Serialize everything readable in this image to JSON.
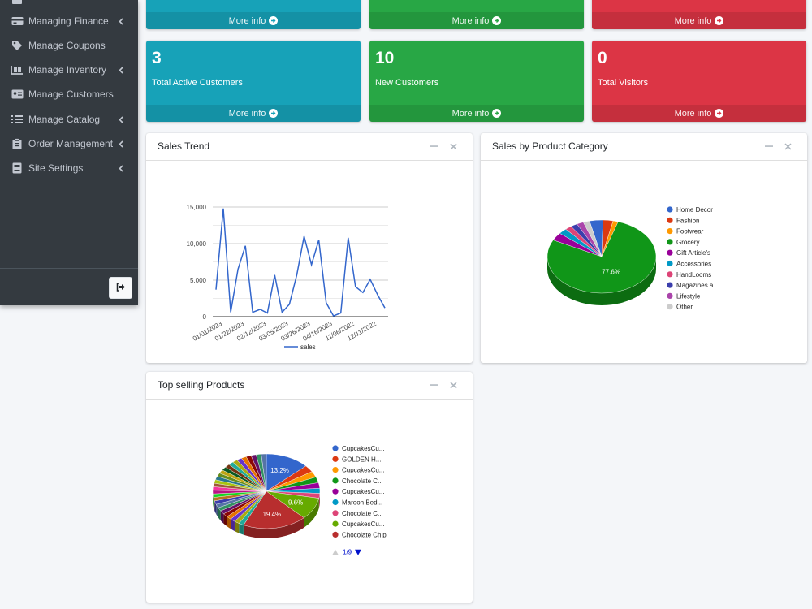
{
  "sidebar": {
    "items": [
      {
        "label": "Managing Finance",
        "icon": "credit-card-icon",
        "chevron": true
      },
      {
        "label": "Manage Coupons",
        "icon": "tag-icon",
        "chevron": false
      },
      {
        "label": "Manage Inventory",
        "icon": "dolly-icon",
        "chevron": true
      },
      {
        "label": "Manage Customers",
        "icon": "id-card-icon",
        "chevron": false
      },
      {
        "label": "Manage Catalog",
        "icon": "list-icon",
        "chevron": true
      },
      {
        "label": "Order Management",
        "icon": "clipboard-icon",
        "chevron": true
      },
      {
        "label": "Site Settings",
        "icon": "server-icon",
        "chevron": true
      }
    ],
    "logout_icon": "sign-out-icon"
  },
  "top_boxes": [
    {
      "footer": "More info",
      "color": "#17a2b8"
    },
    {
      "footer": "More info",
      "color": "#28a745"
    },
    {
      "footer": "More info",
      "color": "#dc3545"
    }
  ],
  "stat_boxes": [
    {
      "value": "3",
      "label": "Total Active Customers",
      "footer": "More info",
      "color": "#17a2b8"
    },
    {
      "value": "10",
      "label": "New Customers",
      "footer": "More info",
      "color": "#28a745"
    },
    {
      "value": "0",
      "label": "Total Visitors",
      "footer": "More info",
      "color": "#dc3545"
    }
  ],
  "cards": {
    "sales_trend": {
      "title": "Sales Trend"
    },
    "sales_by_category": {
      "title": "Sales by Product Category"
    },
    "top_selling": {
      "title": "Top selling Products"
    }
  },
  "chart_data": [
    {
      "type": "line",
      "title": "Sales Trend",
      "xlabel": "",
      "ylabel": "",
      "ylim": [
        0,
        15000
      ],
      "y_ticks": [
        "0",
        "5,000",
        "10,000",
        "15,000"
      ],
      "x_tick_labels": [
        "01/01/2023",
        "01/22/2023",
        "02/12/2023",
        "03/05/2023",
        "03/26/2023",
        "04/16/2023",
        "11/06/2022",
        "12/11/2022"
      ],
      "legend": "bottom",
      "grid": true,
      "series": [
        {
          "name": "sales",
          "color": "#3366cc",
          "values": [
            3700,
            14800,
            600,
            6500,
            9700,
            600,
            1000,
            500,
            5700,
            600,
            1700,
            5700,
            11000,
            7100,
            10500,
            1900,
            100,
            500,
            10800,
            4100,
            3300,
            5100,
            3000,
            1200
          ]
        }
      ]
    },
    {
      "type": "pie",
      "title": "Sales by Product Category",
      "legend": "right",
      "slices": [
        {
          "name": "Home Decor",
          "value": 4.0,
          "color": "#3366cc"
        },
        {
          "name": "Fashion",
          "value": 3.0,
          "color": "#dc3912"
        },
        {
          "name": "Footwear",
          "value": 1.5,
          "color": "#ff9900"
        },
        {
          "name": "Grocery",
          "value": 77.6,
          "color": "#109618"
        },
        {
          "name": "Gift Article's",
          "value": 3.5,
          "color": "#990099"
        },
        {
          "name": "Accessories",
          "value": 2.5,
          "color": "#0099c6"
        },
        {
          "name": "HandLooms",
          "value": 2.0,
          "color": "#dd4477"
        },
        {
          "name": "Magazines a...",
          "value": 2.0,
          "color": "#3b3eac"
        },
        {
          "name": "Lifestyle",
          "value": 2.0,
          "color": "#aa44aa"
        },
        {
          "name": "Other",
          "value": 1.9,
          "color": "#cccccc"
        }
      ],
      "labels_shown": [
        "77.6%"
      ]
    },
    {
      "type": "pie",
      "title": "Top selling Products",
      "legend": "right",
      "legend_page": "1/9",
      "slices": [
        {
          "name": "CupcakesCu...",
          "value": 13.2,
          "color": "#3366cc"
        },
        {
          "name": "GOLDEN H...",
          "value": 3.0,
          "color": "#dc3912"
        },
        {
          "name": "CupcakesCu...",
          "value": 2.6,
          "color": "#ff9900"
        },
        {
          "name": "Chocolate C...",
          "value": 2.5,
          "color": "#109618"
        },
        {
          "name": "CupcakesCu...",
          "value": 2.4,
          "color": "#990099"
        },
        {
          "name": "Maroon Bed...",
          "value": 2.2,
          "color": "#0099c6"
        },
        {
          "name": "Chocolate C...",
          "value": 2.1,
          "color": "#dd4477"
        },
        {
          "name": "CupcakesCu...",
          "value": 9.6,
          "color": "#66aa00"
        },
        {
          "name": "Chocolate Chip",
          "value": 19.4,
          "color": "#b82e2e"
        }
      ],
      "labels_shown": [
        "19.4%",
        "13.2%",
        "9.6%"
      ]
    }
  ]
}
